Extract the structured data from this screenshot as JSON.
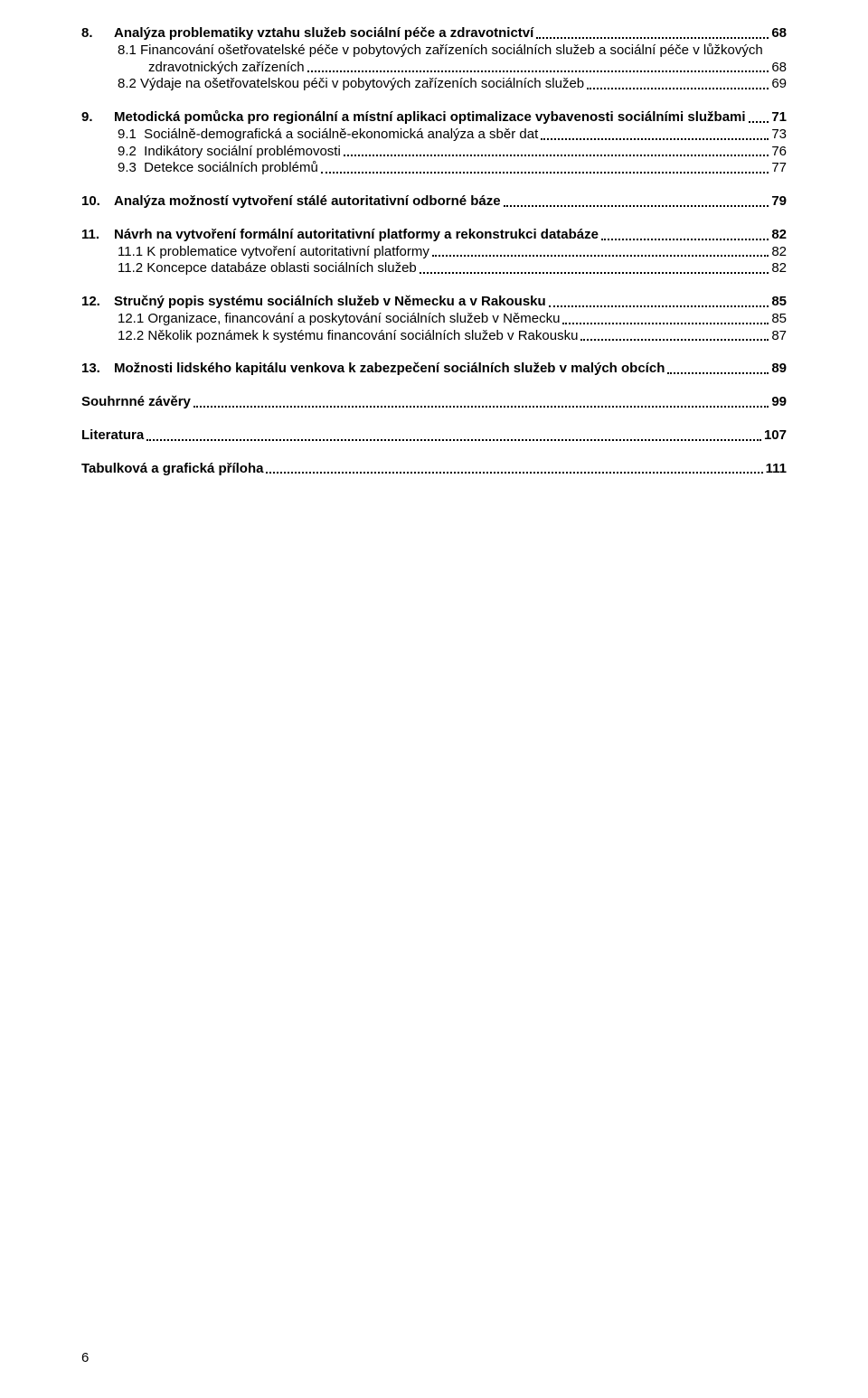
{
  "toc": {
    "font_family": "Verdana",
    "font_size_pt": 11,
    "line_height": 1.25,
    "dot_color": "#000000",
    "text_color": "#000000",
    "background_color": "#ffffff",
    "page_number": "6",
    "groups": [
      {
        "head": {
          "num": "8.",
          "title": "Analýza problematiky vztahu služeb sociální péče a zdravotnictví",
          "page": "68",
          "bold": true
        },
        "subs": [
          {
            "label": "8.1 Financování ošetřovatelské péče v pobytových zařízeních sociálních služeb a sociální péče v lůžkových zdravotnických zařízeních",
            "page": "68"
          },
          {
            "label": "8.2 Výdaje na ošetřovatelskou péči v pobytových zařízeních sociálních služeb",
            "page": "69"
          }
        ]
      },
      {
        "head": {
          "num": "9.",
          "title": "Metodická pomůcka pro regionální a místní aplikaci optimalizace vybavenosti sociálními službami",
          "page": "71",
          "bold": true
        },
        "subs": [
          {
            "label": "9.1  Sociálně-demografická a sociálně-ekonomická analýza a sběr dat",
            "page": "73"
          },
          {
            "label": "9.2  Indikátory sociální problémovosti",
            "page": "76"
          },
          {
            "label": "9.3  Detekce sociálních problémů",
            "page": "77"
          }
        ]
      },
      {
        "head": {
          "num": "10.",
          "title": "Analýza možností vytvoření stálé autoritativní odborné báze",
          "page": "79",
          "bold": true
        },
        "subs": []
      },
      {
        "head": {
          "num": "11.",
          "title": "Návrh na vytvoření formální autoritativní platformy a rekonstrukci databáze",
          "page": "82",
          "bold": true
        },
        "subs": [
          {
            "label": "11.1 K problematice vytvoření autoritativní platformy",
            "page": "82"
          },
          {
            "label": "11.2 Koncepce databáze oblasti sociálních služeb",
            "page": "82"
          }
        ]
      },
      {
        "head": {
          "num": "12.",
          "title": "Stručný popis systému sociálních služeb v Německu a v Rakousku",
          "page": "85",
          "bold": true
        },
        "subs": [
          {
            "label": "12.1 Organizace, financování a poskytování sociálních služeb v Německu",
            "page": "85"
          },
          {
            "label": "12.2 Několik poznámek k systému financování sociálních služeb v Rakousku",
            "page": "87"
          }
        ]
      },
      {
        "head": {
          "num": "13.",
          "title": "Možnosti lidského kapitálu venkova k zabezpečení sociálních služeb v malých obcích",
          "page": "89",
          "bold": true
        },
        "subs": []
      },
      {
        "head": {
          "num": "",
          "title": "Souhrnné závěry",
          "page": "99",
          "bold": true
        },
        "subs": []
      },
      {
        "head": {
          "num": "",
          "title": "Literatura",
          "page": "107",
          "bold": true
        },
        "subs": []
      },
      {
        "head": {
          "num": "",
          "title": "Tabulková a grafická příloha",
          "page": "111",
          "bold": true
        },
        "subs": []
      }
    ]
  }
}
